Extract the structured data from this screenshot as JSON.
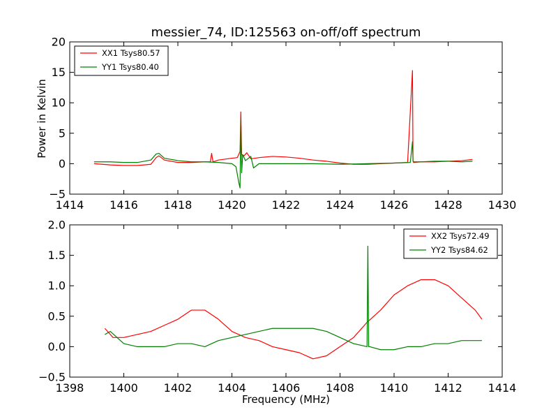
{
  "figure": {
    "title": "messier_74, ID:125563 on-off/off spectrum",
    "ylabel": "Power in Kelvin",
    "xlabel": "Frequency (MHz)"
  },
  "colors": {
    "xx": "#ff0000",
    "yy": "#008000"
  },
  "chart_data": [
    {
      "type": "line",
      "title": "messier_74, ID:125563 on-off/off spectrum",
      "xlabel": "",
      "ylabel": "Power in Kelvin",
      "xlim": [
        1414,
        1430
      ],
      "ylim": [
        -5,
        20
      ],
      "xticks": [
        1414,
        1416,
        1418,
        1420,
        1422,
        1424,
        1426,
        1428,
        1430
      ],
      "yticks": [
        -5,
        0,
        5,
        10,
        15,
        20
      ],
      "legend_position": "top-left",
      "series": [
        {
          "name": "XX1 Tsys80.57",
          "color": "#ff0000",
          "x": [
            1414.9,
            1415.5,
            1416.0,
            1416.5,
            1417.0,
            1417.2,
            1417.3,
            1417.5,
            1418.0,
            1418.5,
            1419.0,
            1419.2,
            1419.25,
            1419.3,
            1419.5,
            1420.0,
            1420.2,
            1420.3,
            1420.33,
            1420.36,
            1420.45,
            1420.55,
            1420.7,
            1421.0,
            1421.5,
            1422.0,
            1422.5,
            1423.0,
            1423.5,
            1424.0,
            1424.5,
            1425.0,
            1425.5,
            1426.0,
            1426.5,
            1426.68,
            1426.7,
            1426.72,
            1427.0,
            1427.5,
            1428.0,
            1428.5,
            1428.9
          ],
          "y": [
            0.0,
            -0.2,
            -0.3,
            -0.3,
            -0.1,
            1.0,
            1.3,
            0.6,
            0.2,
            0.2,
            0.3,
            0.3,
            1.7,
            0.3,
            0.6,
            0.9,
            1.0,
            2.0,
            8.5,
            1.5,
            1.3,
            1.8,
            0.8,
            1.0,
            1.2,
            1.1,
            0.9,
            0.6,
            0.4,
            0.1,
            -0.1,
            -0.1,
            0.0,
            0.1,
            0.2,
            15.3,
            0.5,
            0.2,
            0.3,
            0.3,
            0.4,
            0.5,
            0.7
          ]
        },
        {
          "name": "YY1 Tsys80.40",
          "color": "#008000",
          "x": [
            1414.9,
            1415.5,
            1416.0,
            1416.5,
            1417.0,
            1417.2,
            1417.3,
            1417.5,
            1418.0,
            1418.5,
            1419.0,
            1419.5,
            1420.0,
            1420.15,
            1420.25,
            1420.3,
            1420.33,
            1420.36,
            1420.4,
            1420.5,
            1420.7,
            1420.8,
            1421.0,
            1422.0,
            1423.0,
            1424.0,
            1425.0,
            1426.0,
            1426.6,
            1426.68,
            1426.7,
            1426.72,
            1427.0,
            1427.5,
            1428.0,
            1428.5,
            1428.9
          ],
          "y": [
            0.3,
            0.3,
            0.2,
            0.2,
            0.6,
            1.6,
            1.7,
            0.9,
            0.5,
            0.3,
            0.3,
            0.2,
            0.0,
            -0.5,
            -3.0,
            -4.0,
            7.3,
            -1.5,
            1.5,
            0.5,
            1.2,
            -0.7,
            0.0,
            0.0,
            0.0,
            -0.1,
            0.0,
            0.1,
            0.2,
            3.6,
            0.4,
            0.3,
            0.3,
            0.4,
            0.4,
            0.3,
            0.4
          ]
        }
      ]
    },
    {
      "type": "line",
      "title": "",
      "xlabel": "Frequency (MHz)",
      "ylabel": "",
      "xlim": [
        1398,
        1414
      ],
      "ylim": [
        -0.5,
        2.0
      ],
      "xticks": [
        1398,
        1400,
        1402,
        1404,
        1406,
        1408,
        1410,
        1412,
        1414
      ],
      "yticks": [
        -0.5,
        0.0,
        0.5,
        1.0,
        1.5,
        2.0
      ],
      "legend_position": "top-right",
      "series": [
        {
          "name": "XX2 Tsys72.49",
          "color": "#ff0000",
          "x": [
            1399.3,
            1399.6,
            1400.0,
            1400.5,
            1401.0,
            1401.5,
            1402.0,
            1402.5,
            1403.0,
            1403.5,
            1404.0,
            1404.5,
            1405.0,
            1405.5,
            1406.0,
            1406.5,
            1407.0,
            1407.5,
            1408.0,
            1408.5,
            1409.0,
            1409.5,
            1410.0,
            1410.5,
            1411.0,
            1411.5,
            1412.0,
            1412.5,
            1413.0,
            1413.25
          ],
          "y": [
            0.3,
            0.15,
            0.15,
            0.2,
            0.25,
            0.35,
            0.45,
            0.6,
            0.6,
            0.45,
            0.25,
            0.15,
            0.1,
            0.0,
            -0.05,
            -0.1,
            -0.2,
            -0.15,
            0.0,
            0.15,
            0.4,
            0.6,
            0.85,
            1.0,
            1.1,
            1.1,
            1.0,
            0.8,
            0.6,
            0.45
          ]
        },
        {
          "name": "YY2 Tsys84.62",
          "color": "#008000",
          "x": [
            1399.3,
            1399.5,
            1400.0,
            1400.5,
            1401.0,
            1401.5,
            1402.0,
            1402.5,
            1403.0,
            1403.5,
            1404.0,
            1404.5,
            1405.0,
            1405.5,
            1406.0,
            1406.5,
            1407.0,
            1407.5,
            1408.0,
            1408.5,
            1409.0,
            1409.03,
            1409.06,
            1409.1,
            1409.5,
            1410.0,
            1410.5,
            1411.0,
            1411.5,
            1412.0,
            1412.5,
            1413.0,
            1413.25
          ],
          "y": [
            0.2,
            0.25,
            0.05,
            0.0,
            0.0,
            0.0,
            0.05,
            0.05,
            0.0,
            0.1,
            0.15,
            0.2,
            0.25,
            0.3,
            0.3,
            0.3,
            0.3,
            0.25,
            0.15,
            0.05,
            0.0,
            1.65,
            0.0,
            0.0,
            -0.05,
            -0.05,
            0.0,
            0.0,
            0.05,
            0.05,
            0.1,
            0.1,
            0.1
          ]
        }
      ]
    }
  ]
}
